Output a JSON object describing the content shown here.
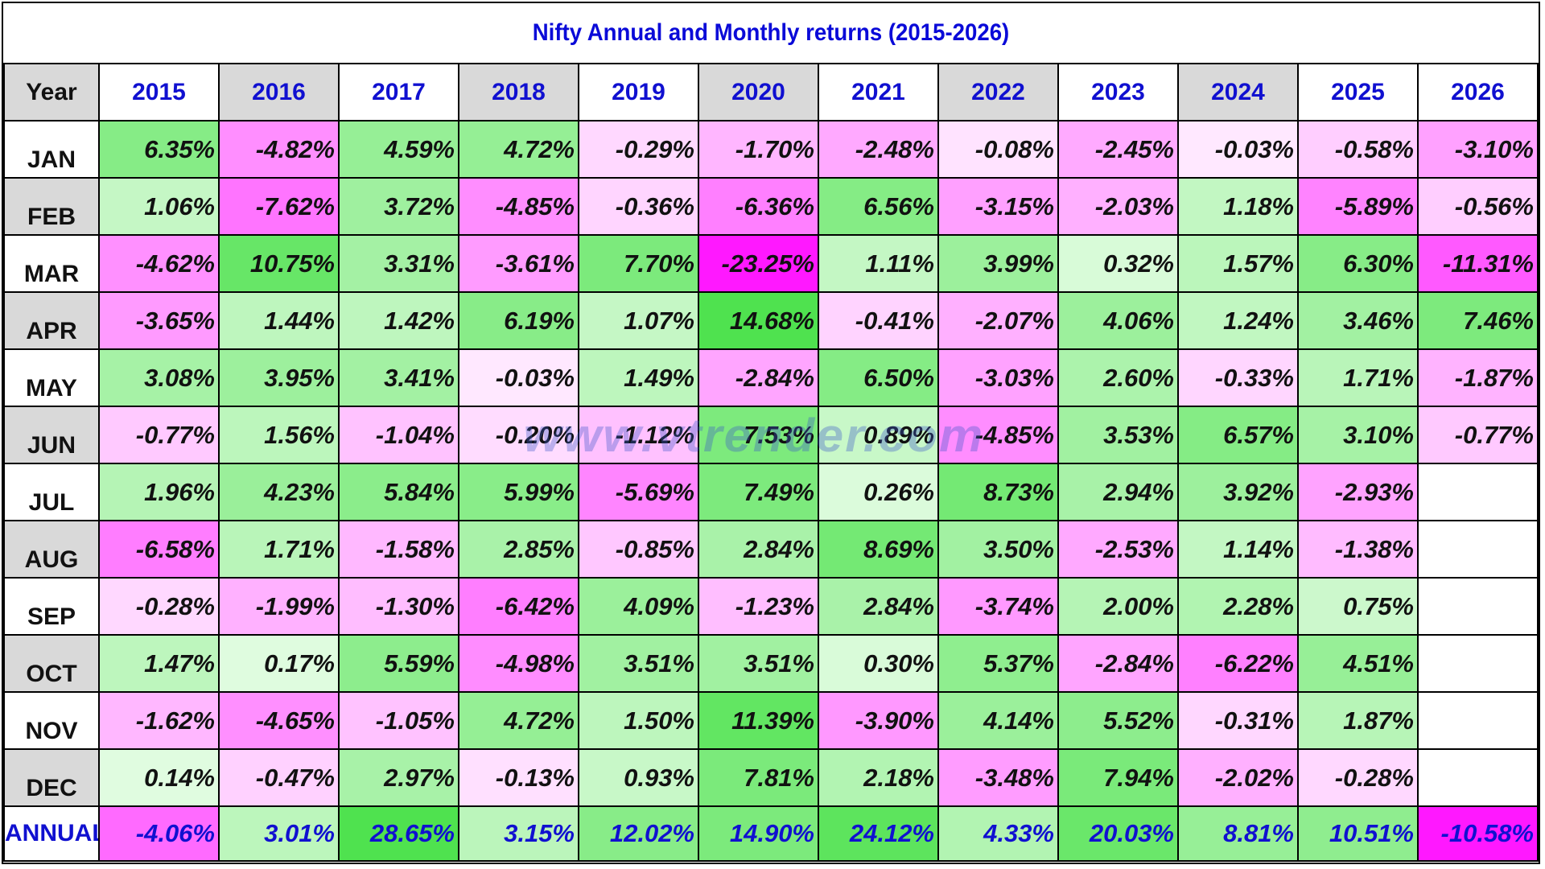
{
  "chart_data": {
    "type": "table",
    "title": "Nifty Annual and Monthly returns (2015-2026)",
    "corner_label": "Year",
    "years": [
      "2015",
      "2016",
      "2017",
      "2018",
      "2019",
      "2020",
      "2021",
      "2022",
      "2023",
      "2024",
      "2025",
      "2026"
    ],
    "rows": [
      {
        "label": "JAN",
        "values": [
          "6.35%",
          "-4.82%",
          "4.59%",
          "4.72%",
          "-0.29%",
          "-1.70%",
          "-2.48%",
          "-0.08%",
          "-2.45%",
          "-0.03%",
          "-0.58%",
          "-3.10%"
        ]
      },
      {
        "label": "FEB",
        "values": [
          "1.06%",
          "-7.62%",
          "3.72%",
          "-4.85%",
          "-0.36%",
          "-6.36%",
          "6.56%",
          "-3.15%",
          "-2.03%",
          "1.18%",
          "-5.89%",
          "-0.56%"
        ]
      },
      {
        "label": "MAR",
        "values": [
          "-4.62%",
          "10.75%",
          "3.31%",
          "-3.61%",
          "7.70%",
          "-23.25%",
          "1.11%",
          "3.99%",
          "0.32%",
          "1.57%",
          "6.30%",
          "-11.31%"
        ]
      },
      {
        "label": "APR",
        "values": [
          "-3.65%",
          "1.44%",
          "1.42%",
          "6.19%",
          "1.07%",
          "14.68%",
          "-0.41%",
          "-2.07%",
          "4.06%",
          "1.24%",
          "3.46%",
          "7.46%"
        ]
      },
      {
        "label": "MAY",
        "values": [
          "3.08%",
          "3.95%",
          "3.41%",
          "-0.03%",
          "1.49%",
          "-2.84%",
          "6.50%",
          "-3.03%",
          "2.60%",
          "-0.33%",
          "1.71%",
          "-1.87%"
        ]
      },
      {
        "label": "JUN",
        "values": [
          "-0.77%",
          "1.56%",
          "-1.04%",
          "-0.20%",
          "-1.12%",
          "7.53%",
          "0.89%",
          "-4.85%",
          "3.53%",
          "6.57%",
          "3.10%",
          "-0.77%"
        ]
      },
      {
        "label": "JUL",
        "values": [
          "1.96%",
          "4.23%",
          "5.84%",
          "5.99%",
          "-5.69%",
          "7.49%",
          "0.26%",
          "8.73%",
          "2.94%",
          "3.92%",
          "-2.93%",
          ""
        ]
      },
      {
        "label": "AUG",
        "values": [
          "-6.58%",
          "1.71%",
          "-1.58%",
          "2.85%",
          "-0.85%",
          "2.84%",
          "8.69%",
          "3.50%",
          "-2.53%",
          "1.14%",
          "-1.38%",
          ""
        ]
      },
      {
        "label": "SEP",
        "values": [
          "-0.28%",
          "-1.99%",
          "-1.30%",
          "-6.42%",
          "4.09%",
          "-1.23%",
          "2.84%",
          "-3.74%",
          "2.00%",
          "2.28%",
          "0.75%",
          ""
        ]
      },
      {
        "label": "OCT",
        "values": [
          "1.47%",
          "0.17%",
          "5.59%",
          "-4.98%",
          "3.51%",
          "3.51%",
          "0.30%",
          "5.37%",
          "-2.84%",
          "-6.22%",
          "4.51%",
          ""
        ]
      },
      {
        "label": "NOV",
        "values": [
          "-1.62%",
          "-4.65%",
          "-1.05%",
          "4.72%",
          "1.50%",
          "11.39%",
          "-3.90%",
          "4.14%",
          "5.52%",
          "-0.31%",
          "1.87%",
          ""
        ]
      },
      {
        "label": "DEC",
        "values": [
          "0.14%",
          "-0.47%",
          "2.97%",
          "-0.13%",
          "0.93%",
          "7.81%",
          "2.18%",
          "-3.48%",
          "7.94%",
          "-2.02%",
          "-0.28%",
          ""
        ]
      }
    ],
    "annual": {
      "label": "ANNUAL",
      "values": [
        "-4.06%",
        "3.01%",
        "28.65%",
        "3.15%",
        "12.02%",
        "14.90%",
        "24.12%",
        "4.33%",
        "20.03%",
        "8.81%",
        "10.51%",
        "-10.58%"
      ]
    },
    "shaded_columns": [
      "2016",
      "2018",
      "2020",
      "2022",
      "2024"
    ],
    "shaded_rows": [
      "FEB",
      "APR",
      "JUN",
      "AUG",
      "OCT",
      "DEC"
    ],
    "colors": {
      "header_text": "#1010d0",
      "label_bg": "#d9d9d9",
      "positive_strong": "#33dd33",
      "positive_light": "#f0fff0",
      "negative_strong": "#ff00ff",
      "negative_light": "#fff0ff"
    }
  },
  "watermark": "www.vtrender.com"
}
